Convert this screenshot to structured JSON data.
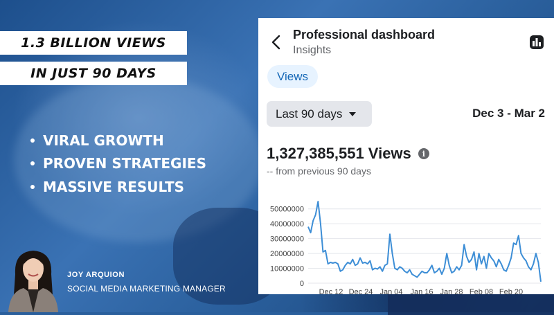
{
  "overlay": {
    "banner_line1": "1.3 BILLION VIEWS",
    "banner_line2": "IN JUST 90 DAYS",
    "bullets": [
      "VIRAL GROWTH",
      "PROVEN STRATEGIES",
      "MASSIVE RESULTS"
    ],
    "person_name": "JOY ARQUION",
    "person_title": "SOCIAL MEDIA MARKETING MANAGER"
  },
  "dashboard": {
    "title": "Professional dashboard",
    "subtitle": "Insights",
    "tab": "Views",
    "range_select": "Last 90 days",
    "date_range": "Dec 3 - Mar 2",
    "total": "1,327,385,551 Views",
    "comparison": "-- from previous 90 days"
  },
  "colors": {
    "accent": "#1668b7",
    "line": "#3d8ed6",
    "grid": "#e4e6eb",
    "background_blue": "#2a5f9c"
  },
  "chart_data": {
    "type": "line",
    "y_ticks": [
      "50000000",
      "40000000",
      "30000000",
      "20000000",
      "10000000",
      "0"
    ],
    "x_ticks": [
      "Dec 12",
      "Dec 24",
      "Jan 04",
      "Jan 16",
      "Jan 28",
      "Feb 08",
      "Feb 20"
    ],
    "ylim": [
      0,
      55000000
    ],
    "grid": true,
    "series": [
      {
        "values": [
          38000000,
          34000000,
          42000000,
          46000000,
          55000000,
          40000000,
          21000000,
          22000000,
          13000000,
          14000000,
          13500000,
          14000000,
          13000000,
          8000000,
          9000000,
          12000000,
          14000000,
          13000000,
          16000000,
          12000000,
          13000000,
          17000000,
          13500000,
          14000000,
          13000000,
          15000000,
          9000000,
          10000000,
          9500000,
          11000000,
          8000000,
          12000000,
          13000000,
          33000000,
          20000000,
          10000000,
          9000000,
          11000000,
          10000000,
          8000000,
          7000000,
          9000000,
          6000000,
          5000000,
          4000000,
          6000000,
          8000000,
          7000000,
          7000000,
          9000000,
          12000000,
          7000000,
          8000000,
          10000000,
          6000000,
          10000000,
          20000000,
          12000000,
          7000000,
          8000000,
          11000000,
          9000000,
          12000000,
          26000000,
          18000000,
          14000000,
          16000000,
          21000000,
          9000000,
          20000000,
          13000000,
          18000000,
          10000000,
          20000000,
          17000000,
          15000000,
          11000000,
          16000000,
          13000000,
          9000000,
          8000000,
          12000000,
          17000000,
          27000000,
          26000000,
          32000000,
          20000000,
          17000000,
          15000000,
          11000000,
          9000000,
          13000000,
          20000000,
          14000000,
          1000000
        ]
      }
    ]
  }
}
